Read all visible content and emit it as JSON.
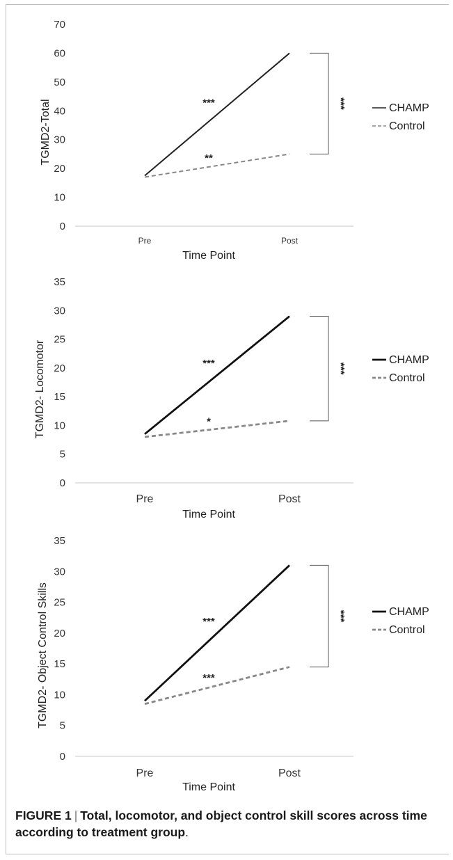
{
  "chart_data": [
    {
      "type": "line",
      "categories": [
        "Pre",
        "Post"
      ],
      "ylabel": "TGMD2-Total",
      "xlabel": "Time Point",
      "ylim": [
        0,
        70
      ],
      "yticks": [
        0,
        10,
        20,
        30,
        40,
        50,
        60,
        70
      ],
      "series": [
        {
          "name": "CHAMP",
          "values": [
            17.5,
            60
          ],
          "color": "#222222",
          "dash": "solid",
          "annotation": "***"
        },
        {
          "name": "Control",
          "values": [
            17,
            25
          ],
          "color": "#888888",
          "dash": "dashed",
          "annotation": "**"
        }
      ],
      "bracket_label": "***",
      "legend_position": "right"
    },
    {
      "type": "line",
      "categories": [
        "Pre",
        "Post"
      ],
      "ylabel": "TGMD2- Locomotor",
      "xlabel": "Time Point",
      "ylim": [
        0,
        35
      ],
      "yticks": [
        0,
        5,
        10,
        15,
        20,
        25,
        30,
        35
      ],
      "series": [
        {
          "name": "CHAMP",
          "values": [
            8.5,
            29
          ],
          "color": "#111111",
          "dash": "solid",
          "annotation": "***"
        },
        {
          "name": "Control",
          "values": [
            8,
            10.8
          ],
          "color": "#888888",
          "dash": "dashed",
          "annotation": "*"
        }
      ],
      "bracket_label": "***",
      "legend_position": "right"
    },
    {
      "type": "line",
      "categories": [
        "Pre",
        "Post"
      ],
      "ylabel": "TGMD2- Object Control Skills",
      "xlabel": "Time Point",
      "ylim": [
        0,
        35
      ],
      "yticks": [
        0,
        5,
        10,
        15,
        20,
        25,
        30,
        35
      ],
      "series": [
        {
          "name": "CHAMP",
          "values": [
            9,
            31
          ],
          "color": "#111111",
          "dash": "solid",
          "annotation": "***"
        },
        {
          "name": "Control",
          "values": [
            8.5,
            14.5
          ],
          "color": "#888888",
          "dash": "dashed",
          "annotation": "***"
        }
      ],
      "bracket_label": "***",
      "legend_position": "right"
    }
  ],
  "caption": {
    "label": "FIGURE 1",
    "separator": "|",
    "title": "Total, locomotor, and object control skill scores across time according to treatment group",
    "end": "."
  }
}
